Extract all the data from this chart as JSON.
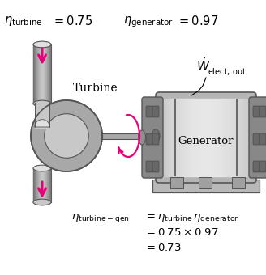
{
  "bg_color": "#ffffff",
  "fig_width": 3.28,
  "fig_height": 3.4,
  "dpi": 100,
  "arrow_color": "#E8007A",
  "gray_dark": "#707070",
  "gray_mid": "#A8A8A8",
  "gray_light": "#C8C8C8",
  "gray_lighter": "#E0E0E0",
  "gray_outline": "#555555",
  "gray_body": "#B0B0B0",
  "gray_cap": "#888888",
  "gray_slot": "#686868"
}
